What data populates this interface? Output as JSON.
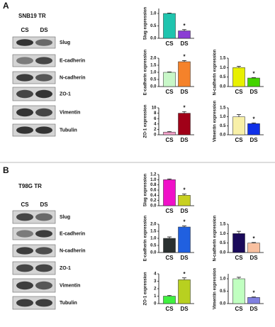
{
  "panels": [
    {
      "label": "A",
      "cell_line": "SNB19 TR",
      "lanes": [
        "CS",
        "DS"
      ],
      "proteins": [
        "Slug",
        "E-cadherin",
        "N-cadherin",
        "ZO-1",
        "Vimentin",
        "Tubulin"
      ]
    },
    {
      "label": "B",
      "cell_line": "T98G TR",
      "lanes": [
        "CS",
        "DS"
      ],
      "proteins": [
        "Slug",
        "E-cadherin",
        "N-cadherin",
        "ZO-1",
        "Vimentin",
        "Tubulin"
      ]
    }
  ],
  "chart_data": [
    {
      "type": "bar",
      "y_label": "Slug expression",
      "categories": [
        "CS",
        "DS"
      ],
      "values": [
        1.0,
        0.3
      ],
      "errors": [
        0.02,
        0.05
      ],
      "colors": [
        "#1fc4ae",
        "#8b3fd4"
      ],
      "annotation": "*",
      "ylim": [
        0,
        1.2
      ],
      "yticks": [
        {
          "value": 0,
          "label": "0.0"
        },
        {
          "value": 0.5,
          "label": "0.5"
        },
        {
          "value": 1,
          "label": "1.0"
        }
      ]
    },
    {
      "type": "bar",
      "y_label": "E-cadherin expression",
      "categories": [
        "CS",
        "DS"
      ],
      "values": [
        1.0,
        1.75
      ],
      "errors": [
        0.03,
        0.08
      ],
      "colors": [
        "#c8f7c8",
        "#f5822a"
      ],
      "annotation": "*",
      "ylim": [
        0,
        2
      ],
      "yticks": [
        {
          "value": 0,
          "label": "0.0"
        },
        {
          "value": 0.5,
          "label": "0.5"
        },
        {
          "value": 1,
          "label": "1.0"
        },
        {
          "value": 1.5,
          "label": "1.5"
        },
        {
          "value": 2,
          "label": "2.0"
        }
      ]
    },
    {
      "type": "bar",
      "y_label": "N-cadherin expression",
      "categories": [
        "CS",
        "DS"
      ],
      "values": [
        1.0,
        0.45
      ],
      "errors": [
        0.07,
        0.02
      ],
      "colors": [
        "#e8f000",
        "#44d400"
      ],
      "annotation": "*",
      "ylim": [
        0,
        1.5
      ],
      "yticks": [
        {
          "value": 0,
          "label": "0.0"
        },
        {
          "value": 0.5,
          "label": "0.5"
        },
        {
          "value": 1,
          "label": "1.0"
        },
        {
          "value": 1.5,
          "label": "1.5"
        }
      ]
    },
    {
      "type": "bar",
      "y_label": "ZO-1 expression",
      "categories": [
        "CS",
        "DS"
      ],
      "values": [
        1.0,
        8.0
      ],
      "errors": [
        0.2,
        0.6
      ],
      "colors": [
        "#f2a0c8",
        "#a00018"
      ],
      "annotation": "*",
      "ylim": [
        0,
        10
      ],
      "yticks": [
        0,
        2,
        4,
        6,
        8,
        10
      ]
    },
    {
      "type": "bar",
      "y_label": "Vimentin expression",
      "categories": [
        "CS",
        "DS"
      ],
      "values": [
        1.0,
        0.62
      ],
      "errors": [
        0.12,
        0.04
      ],
      "colors": [
        "#f8f0a8",
        "#1030e8"
      ],
      "annotation": "*",
      "ylim": [
        0,
        1.5
      ],
      "yticks": [
        {
          "value": 0,
          "label": "0.0"
        },
        {
          "value": 0.5,
          "label": "0.5"
        },
        {
          "value": 1,
          "label": "1.0"
        },
        {
          "value": 1.5,
          "label": "1.5"
        }
      ]
    },
    {
      "type": "bar",
      "y_label": "Slug expression",
      "categories": [
        "CS",
        "DS"
      ],
      "values": [
        1.0,
        0.4
      ],
      "errors": [
        0.03,
        0.05
      ],
      "colors": [
        "#f010c8",
        "#c8d020"
      ],
      "annotation": "*",
      "ylim": [
        0,
        1.2
      ],
      "yticks": [
        {
          "value": 0,
          "label": "0.0"
        },
        {
          "value": 0.2,
          "label": "0.2"
        },
        {
          "value": 0.4,
          "label": "0.4"
        },
        {
          "value": 0.6,
          "label": "0.6"
        },
        {
          "value": 0.8,
          "label": "0.8"
        },
        {
          "value": 1,
          "label": "1.0"
        },
        {
          "value": 1.2,
          "label": "1.2"
        }
      ]
    },
    {
      "type": "bar",
      "y_label": "E-cadherin expression",
      "categories": [
        "CS",
        "DS"
      ],
      "values": [
        1.0,
        1.8
      ],
      "errors": [
        0.1,
        0.07
      ],
      "colors": [
        "#2a3030",
        "#2060e0"
      ],
      "annotation": "*",
      "ylim": [
        0,
        2
      ],
      "yticks": [
        {
          "value": 0,
          "label": "0.0"
        },
        {
          "value": 0.5,
          "label": "0.5"
        },
        {
          "value": 1,
          "label": "1.0"
        },
        {
          "value": 1.5,
          "label": "1.5"
        },
        {
          "value": 2,
          "label": "2.0"
        }
      ]
    },
    {
      "type": "bar",
      "y_label": "N-cadherin expression",
      "categories": [
        "CS",
        "DS"
      ],
      "values": [
        1.0,
        0.5
      ],
      "errors": [
        0.12,
        0.03
      ],
      "colors": [
        "#1a0a5a",
        "#f8c0a0"
      ],
      "annotation": "*",
      "ylim": [
        0,
        1.5
      ],
      "yticks": [
        {
          "value": 0,
          "label": "0.0"
        },
        {
          "value": 0.5,
          "label": "0.5"
        },
        {
          "value": 1,
          "label": "1.0"
        },
        {
          "value": 1.5,
          "label": "1.5"
        }
      ]
    },
    {
      "type": "bar",
      "y_label": "ZO-1 expression",
      "categories": [
        "CS",
        "DS"
      ],
      "values": [
        1.0,
        3.2
      ],
      "errors": [
        0.1,
        0.25
      ],
      "colors": [
        "#40f040",
        "#b8d020"
      ],
      "annotation": "*",
      "ylim": [
        0,
        4
      ],
      "yticks": [
        0,
        1,
        2,
        3,
        4
      ]
    },
    {
      "type": "bar",
      "y_label": "Vimentin expression",
      "categories": [
        "CS",
        "DS"
      ],
      "values": [
        1.0,
        0.25
      ],
      "errors": [
        0.06,
        0.02
      ],
      "colors": [
        "#c0ffc0",
        "#8080e0"
      ],
      "annotation": "*",
      "ylim": [
        0,
        1.2
      ],
      "yticks": [
        {
          "value": 0,
          "label": "0.0"
        },
        {
          "value": 0.5,
          "label": "0.5"
        },
        {
          "value": 1,
          "label": "1.0"
        }
      ]
    }
  ]
}
